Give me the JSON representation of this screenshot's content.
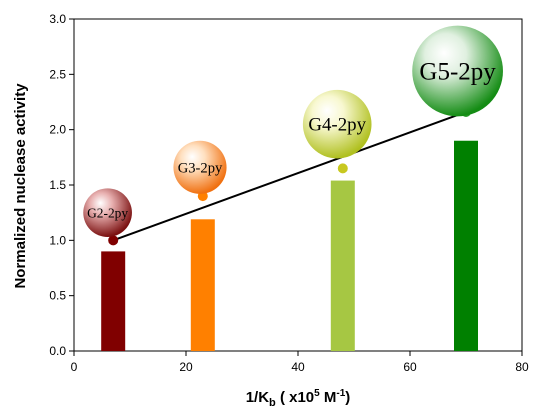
{
  "chart_data": {
    "type": "bar",
    "xlabel": {
      "main": "1/K",
      "sub": "b",
      "mid": " ( x10",
      "sup1": "5",
      "unit": " M",
      "sup2": "-1",
      "end": ")"
    },
    "ylabel": "Normalized nuclease activity",
    "xlim": [
      0,
      80
    ],
    "ylim": [
      0.0,
      3.0
    ],
    "x_ticks": [
      0,
      20,
      40,
      60,
      80
    ],
    "y_ticks": [
      "0.0",
      "0.5",
      "1.0",
      "1.5",
      "2.0",
      "2.5",
      "3.0"
    ],
    "grid": false,
    "bars": [
      {
        "label": "G2-2py",
        "x": 7,
        "value": 0.9,
        "color": "#800000"
      },
      {
        "label": "G3-2py",
        "x": 23,
        "value": 1.19,
        "color": "#ff8000"
      },
      {
        "label": "G4-2py",
        "x": 48,
        "value": 1.54,
        "color": "#a6c743"
      },
      {
        "label": "G5-2py",
        "x": 70,
        "value": 1.9,
        "color": "#008000"
      }
    ],
    "points": [
      {
        "x": 7,
        "y": 1.0,
        "color": "#800000"
      },
      {
        "x": 23,
        "y": 1.4,
        "color": "#ff8000"
      },
      {
        "x": 48,
        "y": 1.65,
        "color": "#c8c820"
      },
      {
        "x": 70,
        "y": 2.16,
        "color": "#2a9a2a"
      }
    ],
    "fit_line": {
      "x": [
        7,
        70
      ],
      "y": [
        1.0,
        2.16
      ],
      "color": "#000000"
    },
    "bubbles": [
      {
        "label": "G2-2py",
        "center": {
          "x": 6,
          "y": 1.25
        },
        "radius_y": 0.22,
        "color_light": "#e8b0b0",
        "color_dark": "#7a1010"
      },
      {
        "label": "G3-2py",
        "center": {
          "x": 22.5,
          "y": 1.66
        },
        "radius_y": 0.24,
        "color_light": "#ffe0c0",
        "color_dark": "#f07010"
      },
      {
        "label": "G4-2py",
        "center": {
          "x": 47,
          "y": 2.05
        },
        "radius_y": 0.31,
        "color_light": "#f8f8d0",
        "color_dark": "#b0c020"
      },
      {
        "label": "G5-2py",
        "center": {
          "x": 68.5,
          "y": 2.53
        },
        "radius_y": 0.41,
        "color_light": "#e0f0e0",
        "color_dark": "#148c14"
      }
    ]
  }
}
